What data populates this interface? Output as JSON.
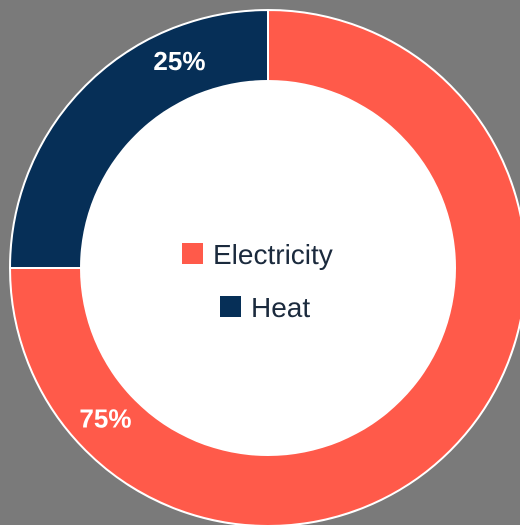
{
  "chart_data": {
    "type": "pie",
    "categories": [
      "Electricity",
      "Heat"
    ],
    "values": [
      75,
      25
    ],
    "value_labels": [
      "75%",
      "25%"
    ],
    "colors": [
      "#ff5a4a",
      "#062f57"
    ],
    "legend_placement": "center"
  }
}
